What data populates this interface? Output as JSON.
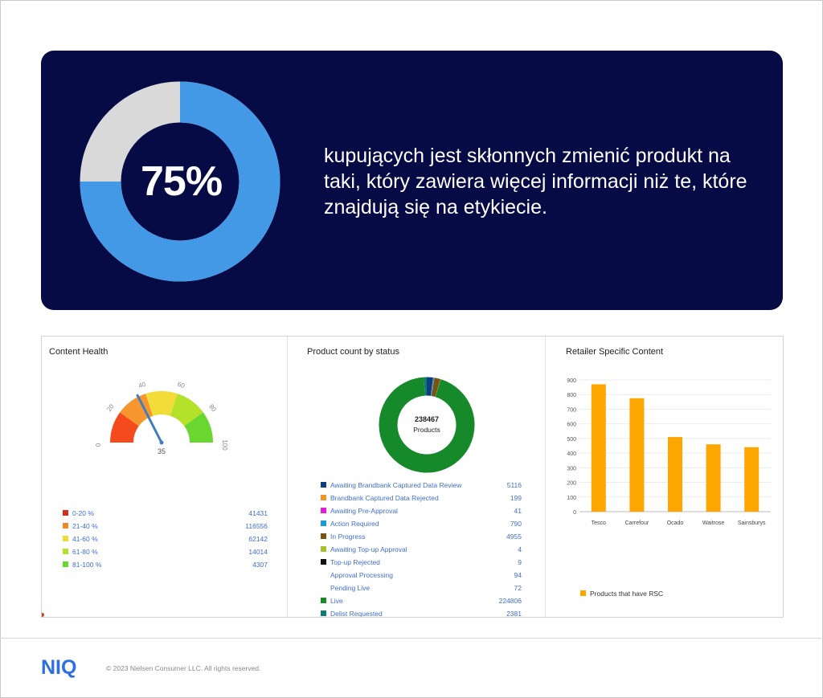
{
  "hero": {
    "percent_label": "75%",
    "percent_value": 0.75,
    "text": "kupujących jest skłonnych zmienić produkt na taki, który zawiera więcej informacji niż te, które znajdują się na etykiecie.",
    "colors": {
      "background": "#060a45",
      "ring_fill": "#4499e6",
      "ring_rest": "#d9d9d9"
    }
  },
  "content_health": {
    "title": "Content Health",
    "gauge": {
      "tick_labels": [
        "0",
        "20",
        "40",
        "60",
        "80",
        "100"
      ],
      "value": 35,
      "value_label": "35",
      "band_colors": [
        "#f54a1e",
        "#f5962e",
        "#f2dc3a",
        "#b4e12a",
        "#6ad630"
      ]
    },
    "legend": [
      {
        "label": "0-20 %",
        "value": "41431",
        "color": "#d32f1a"
      },
      {
        "label": "21-40 %",
        "value": "116556",
        "color": "#f08a24"
      },
      {
        "label": "41-60 %",
        "value": "62142",
        "color": "#f2dc3a"
      },
      {
        "label": "61-80 %",
        "value": "14014",
        "color": "#b4e12a"
      },
      {
        "label": "81-100 %",
        "value": "4307",
        "color": "#6ad630"
      }
    ]
  },
  "product_status": {
    "title": "Product count by status",
    "center_value": "238467",
    "center_label": "Products",
    "legend": [
      {
        "label": "Awaiting Brandbank Captured Data Review",
        "value": "5116",
        "color": "#0e3d7d"
      },
      {
        "label": "Brandbank Captured Data Rejected",
        "value": "199",
        "color": "#f29423"
      },
      {
        "label": "Awaiting Pre-Approval",
        "value": "41",
        "color": "#e01ed8"
      },
      {
        "label": "Action Required",
        "value": "790",
        "color": "#199ad6"
      },
      {
        "label": "In Progress",
        "value": "4955",
        "color": "#7a5410"
      },
      {
        "label": "Awaiting Top-up Approval",
        "value": "4",
        "color": "#a9c229"
      },
      {
        "label": "Top-up Rejected",
        "value": "9",
        "color": "#111111"
      },
      {
        "label": "Approval Processing",
        "value": "94",
        "color": ""
      },
      {
        "label": "Pending Live",
        "value": "72",
        "color": ""
      },
      {
        "label": "Live",
        "value": "224806",
        "color": "#168a2a"
      },
      {
        "label": "Delist Requested",
        "value": "2381",
        "color": "#0e7c74"
      }
    ]
  },
  "retailer_content": {
    "title": "Retailer Specific Content",
    "legend_label": "Products that have RSC",
    "bar_color": "#ffa500"
  },
  "chart_data": [
    {
      "type": "bar",
      "title": "Retailer Specific Content",
      "categories": [
        "Tesco",
        "Carrefour",
        "Ocado",
        "Waitrose",
        "Sainsburys"
      ],
      "series": [
        {
          "name": "Products that have RSC",
          "values": [
            870,
            775,
            510,
            460,
            440
          ]
        }
      ],
      "ylim": [
        0,
        900
      ],
      "yticks": [
        0,
        100,
        200,
        300,
        400,
        500,
        600,
        700,
        800,
        900
      ],
      "grid": true,
      "legend": "bottom-left"
    },
    {
      "type": "pie",
      "title": "Product count by status",
      "labels": [
        "Awaiting Brandbank Captured Data Review",
        "Brandbank Captured Data Rejected",
        "Awaiting Pre-Approval",
        "Action Required",
        "In Progress",
        "Awaiting Top-up Approval",
        "Top-up Rejected",
        "Approval Processing",
        "Pending Live",
        "Live",
        "Delist Requested"
      ],
      "values": [
        5116,
        199,
        41,
        790,
        4955,
        4,
        9,
        94,
        72,
        224806,
        2381
      ]
    }
  ],
  "footer": {
    "logo_text": "NIQ",
    "copyright": "© 2023 Nielsen Consumer LLC. All rights reserved."
  }
}
